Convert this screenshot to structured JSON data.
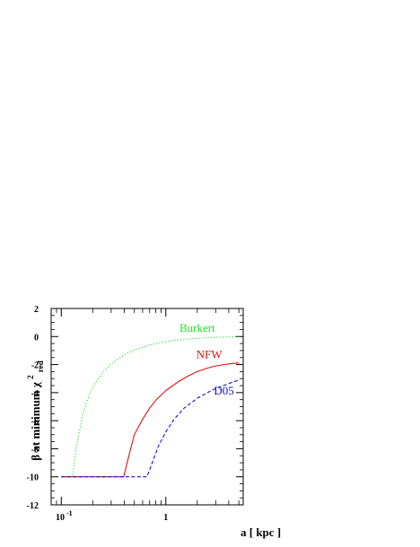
{
  "chart_data": {
    "type": "line",
    "xlabel": "a [ kpc ]",
    "ylabel": "β at minimum χ",
    "ylabel_sup": "2",
    "ylabel_sub": "red",
    "x_scale": "log",
    "xlim": [
      0.08,
      5.5
    ],
    "ylim": [
      -12,
      2
    ],
    "grid": false,
    "legend": "inline labels next to curves",
    "x_ticks": [
      {
        "value": 0.1,
        "base": "10",
        "exp": "-1"
      },
      {
        "value": 1,
        "base": "1",
        "exp": ""
      }
    ],
    "y_ticks": [
      {
        "value": 2,
        "label": "2"
      },
      {
        "value": 0,
        "label": "0"
      },
      {
        "value": -2,
        "label": "-2"
      },
      {
        "value": -4,
        "label": "-4"
      },
      {
        "value": -6,
        "label": "-6"
      },
      {
        "value": -8,
        "label": "-8"
      },
      {
        "value": -10,
        "label": "-10"
      },
      {
        "value": -12,
        "label": "-12"
      }
    ],
    "series": [
      {
        "name": "Burkert",
        "color": "#22dd22",
        "dash": "dotted",
        "label_at": [
          2.0,
          0.35
        ],
        "x": [
          0.115,
          0.128,
          0.14,
          0.16,
          0.18,
          0.2,
          0.25,
          0.3,
          0.4,
          0.5,
          0.7,
          1.0,
          1.5,
          2.0,
          3.0,
          5.0
        ],
        "y": [
          -10.0,
          -10.0,
          -7.8,
          -5.6,
          -4.4,
          -3.6,
          -2.55,
          -1.95,
          -1.3,
          -0.95,
          -0.6,
          -0.35,
          -0.2,
          -0.13,
          -0.06,
          0.0
        ]
      },
      {
        "name": "NFW",
        "color": "#dd1111",
        "dash": "solid",
        "label_at": [
          2.6,
          -1.55
        ],
        "x": [
          0.1,
          0.15,
          0.2,
          0.3,
          0.395,
          0.45,
          0.5,
          0.6,
          0.7,
          0.8,
          1.0,
          1.3,
          1.6,
          2.0,
          2.5,
          3.0,
          4.0,
          5.0
        ],
        "y": [
          -10.0,
          -10.0,
          -10.0,
          -10.0,
          -10.0,
          -8.3,
          -7.0,
          -5.9,
          -5.1,
          -4.55,
          -3.85,
          -3.25,
          -2.85,
          -2.5,
          -2.25,
          -2.1,
          -1.95,
          -1.88
        ]
      },
      {
        "name": "D05",
        "color": "#1111dd",
        "dash": "dashed",
        "label_at": [
          3.6,
          -4.15
        ],
        "x": [
          0.1,
          0.2,
          0.4,
          0.6,
          0.66,
          0.75,
          0.85,
          1.0,
          1.2,
          1.5,
          2.0,
          2.5,
          3.0,
          4.0,
          5.0
        ],
        "y": [
          -10.0,
          -10.0,
          -10.0,
          -10.0,
          -10.0,
          -8.9,
          -7.8,
          -6.8,
          -5.9,
          -5.1,
          -4.4,
          -4.0,
          -3.7,
          -3.35,
          -3.1
        ]
      }
    ]
  }
}
